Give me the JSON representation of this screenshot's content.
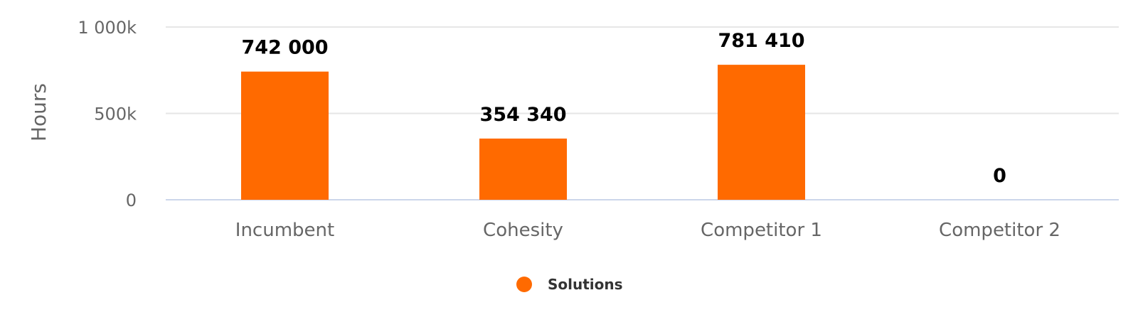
{
  "chart_data": {
    "type": "bar",
    "categories": [
      "Incumbent",
      "Cohesity",
      "Competitor 1",
      "Competitor 2"
    ],
    "series": [
      {
        "name": "Solutions",
        "values": [
          742000,
          354340,
          781410,
          0
        ],
        "color": "#ff6a00"
      }
    ],
    "data_labels": [
      "742 000",
      "354 340",
      "781 410",
      "0"
    ],
    "ylabel": "Hours",
    "ylim": [
      0,
      1000000
    ],
    "yticks": [
      0,
      500000,
      1000000
    ],
    "ytick_labels": [
      "0",
      "500k",
      "1 000k"
    ],
    "grid": true,
    "legend_position": "bottom-center",
    "colors": {
      "grid": "#e6e6e6",
      "baseline": "#ccd6eb",
      "axis_text": "#666666",
      "label_text": "#000000"
    }
  }
}
